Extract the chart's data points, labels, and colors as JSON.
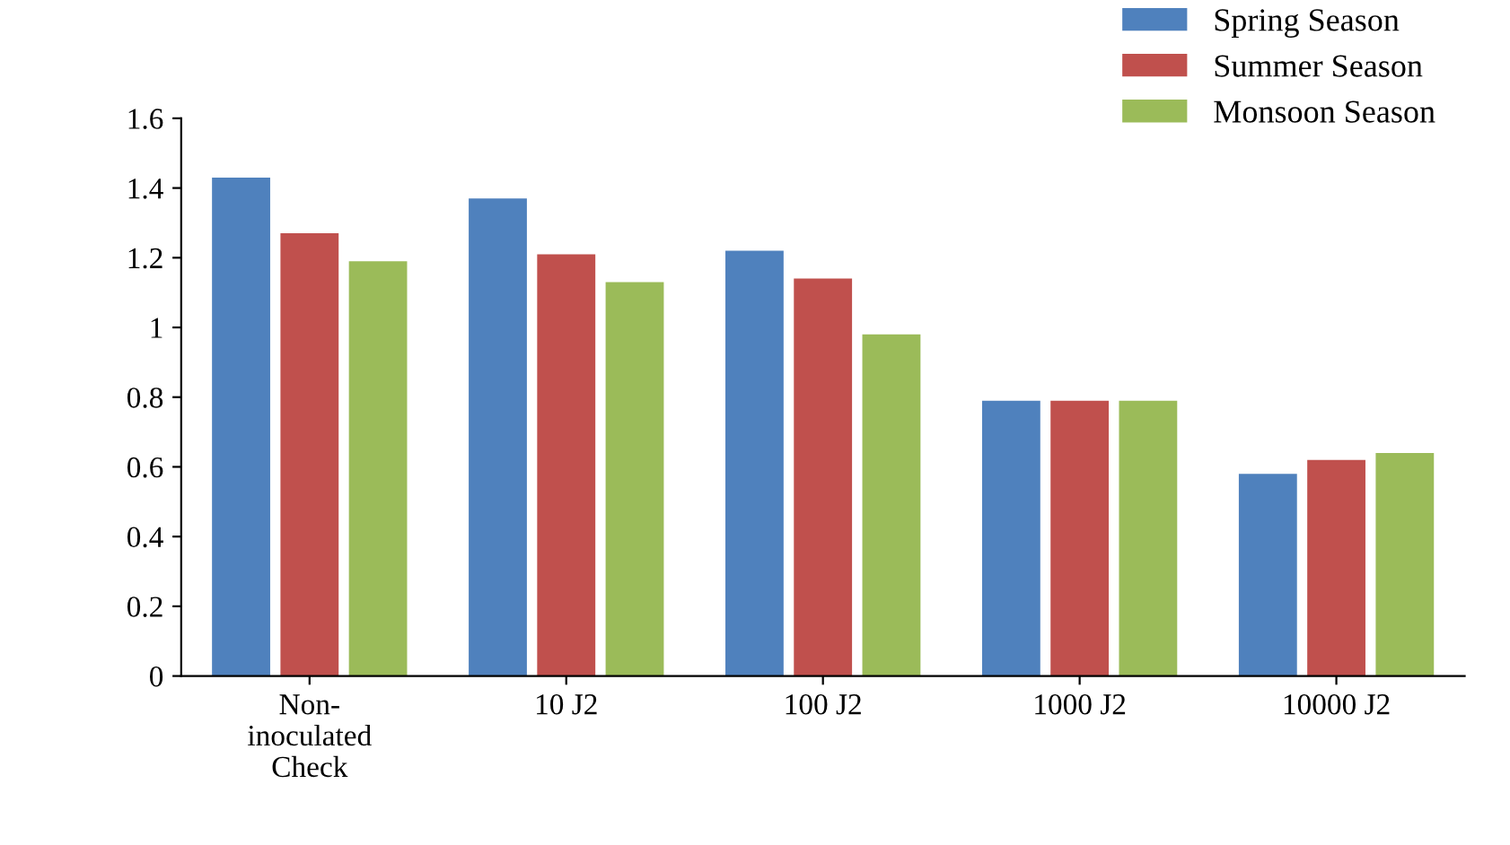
{
  "chart_data": {
    "type": "bar",
    "categories": [
      "Non-\ninoculated\nCheck",
      "10 J2",
      "100 J2",
      "1000 J2",
      "10000 J2"
    ],
    "series": [
      {
        "name": "Spring Season",
        "color": "#4f81bd",
        "values": [
          1.43,
          1.37,
          1.22,
          0.79,
          0.58
        ]
      },
      {
        "name": "Summer Season",
        "color": "#c0504d",
        "values": [
          1.27,
          1.21,
          1.14,
          0.79,
          0.62
        ]
      },
      {
        "name": "Monsoon Season",
        "color": "#9bbb59",
        "values": [
          1.19,
          1.13,
          0.98,
          0.79,
          0.64
        ]
      }
    ],
    "ylim": [
      0,
      1.6
    ],
    "yticks": [
      0,
      0.2,
      0.4,
      0.6,
      0.8,
      1,
      1.2,
      1.4,
      1.6
    ],
    "grid": false,
    "legend": "top right"
  }
}
